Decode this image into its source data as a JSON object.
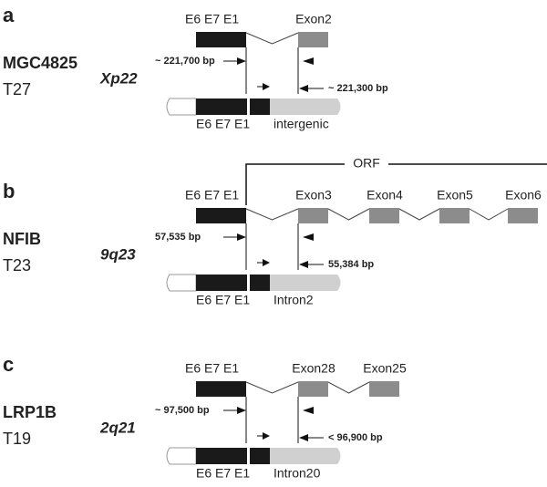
{
  "panels": [
    {
      "letter": "a",
      "gene": "MGC4825",
      "tumor": "T27",
      "locus": "Xp22",
      "top_label": "E6 E7 E1",
      "exons": [
        "Exon2"
      ],
      "left_distance": "~ 221,700 bp",
      "right_distance": "~ 221,300 bp",
      "bottom_label": "E6 E7 E1",
      "bottom_region": "intergenic"
    },
    {
      "letter": "b",
      "gene": "NFIB",
      "tumor": "T23",
      "locus": "9q23",
      "orf": "ORF",
      "top_label": "E6 E7 E1",
      "exons": [
        "Exon3",
        "Exon4",
        "Exon5",
        "Exon6"
      ],
      "left_distance": "57,535 bp",
      "right_distance": "55,384 bp",
      "bottom_label": "E6 E7 E1",
      "bottom_region": "Intron2"
    },
    {
      "letter": "c",
      "gene": "LRP1B",
      "tumor": "T19",
      "locus": "2q21",
      "top_label": "E6 E7 E1",
      "exons": [
        "Exon28",
        "Exon25"
      ],
      "left_distance": "~ 97,500 bp",
      "right_distance": "< 96,900 bp",
      "bottom_label": "E6 E7 E1",
      "bottom_region": "Intron20"
    }
  ]
}
